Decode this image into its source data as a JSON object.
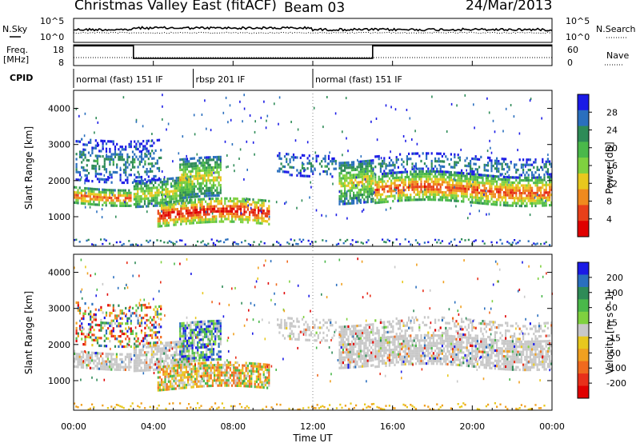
{
  "header": {
    "radar": "Christmas Valley East (fitACF)",
    "beam": "Beam 03",
    "date": "24/Mar/2013"
  },
  "noise_panel": {
    "left_label": "N.Sky",
    "right_label": "N.Search",
    "left_ticks": [
      "10^5",
      "10^0"
    ],
    "right_ticks": [
      "10^5",
      "10^0"
    ]
  },
  "freq_panel": {
    "left_label_line1": "Freq.",
    "left_label_line2": "[MHz]",
    "right_label": "Nave",
    "left_ticks": [
      "18",
      "8"
    ],
    "right_ticks": [
      "60",
      "0"
    ],
    "freq_steps": [
      [
        0,
        0.95
      ],
      [
        3,
        0.95
      ],
      [
        3,
        0.35
      ],
      [
        15,
        0.35
      ],
      [
        15,
        0.95
      ],
      [
        24,
        0.95
      ]
    ]
  },
  "cpid": {
    "label": "CPID",
    "segments": [
      {
        "start": 0,
        "end": 6,
        "text": "normal (fast) 151 IF"
      },
      {
        "start": 6,
        "end": 12,
        "text": "rbsp 201 IF"
      },
      {
        "start": 12,
        "end": 24,
        "text": "normal (fast) 151 IF"
      }
    ]
  },
  "chart_data": {
    "type": "heatmap",
    "xlabel": "Time UT",
    "x_ticks": [
      "00:00",
      "04:00",
      "08:00",
      "12:00",
      "16:00",
      "20:00",
      "00:00"
    ],
    "xlim": [
      0,
      24
    ],
    "panels": [
      {
        "name": "power",
        "ylabel": "Slant Range [km]",
        "ylim": [
          180,
          4500
        ],
        "y_ticks": [
          1000,
          2000,
          3000,
          4000
        ],
        "colorbar_label": "Power [dB]",
        "colorbar_ticks": [
          "28",
          "24",
          "20",
          "16",
          "12",
          "8",
          "4"
        ],
        "colorbar_colors": [
          "#1a1ae6",
          "#2a6fbe",
          "#2e8b57",
          "#4ab84a",
          "#7fd13f",
          "#e8c81e",
          "#f08a1e",
          "#e8401a",
          "#e00000"
        ]
      },
      {
        "name": "velocity",
        "ylabel": "Slant Range [km]",
        "ylim": [
          180,
          4500
        ],
        "y_ticks": [
          1000,
          2000,
          3000,
          4000
        ],
        "colorbar_label": "Velocity [m s^-1]",
        "colorbar_ticks": [
          "200",
          "100",
          "50",
          "15",
          "-15",
          "-50",
          "-100",
          "-200"
        ],
        "colorbar_colors": [
          "#1a1ae6",
          "#2a6fbe",
          "#2e8b57",
          "#4ab84a",
          "#7fd13f",
          "#c8c8c8",
          "#e8c81e",
          "#f0a020",
          "#f06a1e",
          "#e8301a",
          "#e00000"
        ]
      }
    ],
    "features": [
      {
        "t0": 0.0,
        "t1": 2.9,
        "r0": 1400,
        "r1": 1850,
        "level": "high",
        "vel": "near-zero"
      },
      {
        "t0": 3.0,
        "t1": 5.9,
        "r0": 1350,
        "r1": 2100,
        "level": "medium",
        "vel": "near-zero"
      },
      {
        "t0": 4.2,
        "t1": 9.8,
        "r0": 780,
        "r1": 1450,
        "level": "very-high",
        "vel": "negative"
      },
      {
        "t0": 5.3,
        "t1": 7.4,
        "r0": 1500,
        "r1": 2600,
        "level": "medium",
        "vel": "positive"
      },
      {
        "t0": 0.1,
        "t1": 4.4,
        "r0": 2000,
        "r1": 3200,
        "level": "low",
        "vel": "mixed"
      },
      {
        "t0": 10.2,
        "t1": 13.2,
        "r0": 2200,
        "r1": 2800,
        "level": "low",
        "vel": "near-zero"
      },
      {
        "t0": 13.3,
        "t1": 15.0,
        "r0": 1450,
        "r1": 2600,
        "level": "medium",
        "vel": "near-zero"
      },
      {
        "t0": 15.1,
        "t1": 24.0,
        "r0": 1350,
        "r1": 2200,
        "level": "high",
        "vel": "near-zero"
      },
      {
        "t0": 15.1,
        "t1": 24.0,
        "r0": 2200,
        "r1": 2700,
        "level": "low",
        "vel": "near-zero"
      }
    ]
  }
}
